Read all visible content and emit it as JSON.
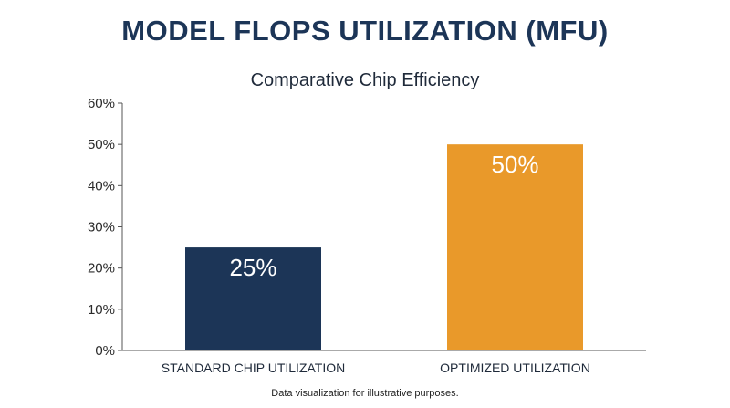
{
  "title": "MODEL FLOPS UTILIZATION (MFU)",
  "footnote": "Data visualization for illustrative purposes.",
  "chart_data": {
    "type": "bar",
    "title": "Comparative Chip Efficiency",
    "xlabel": "",
    "ylabel": "",
    "categories": [
      "STANDARD CHIP UTILIZATION",
      "OPTIMIZED UTILIZATION"
    ],
    "values": [
      25,
      50
    ],
    "value_labels": [
      "25%",
      "50%"
    ],
    "ylim": [
      0,
      60
    ],
    "yticks": [
      0,
      10,
      20,
      30,
      40,
      50,
      60
    ],
    "ytick_labels": [
      "0%",
      "10%",
      "20%",
      "30%",
      "40%",
      "50%",
      "60%"
    ],
    "colors": [
      "#1c3557",
      "#e9992a"
    ],
    "grid": false,
    "legend": "none"
  }
}
